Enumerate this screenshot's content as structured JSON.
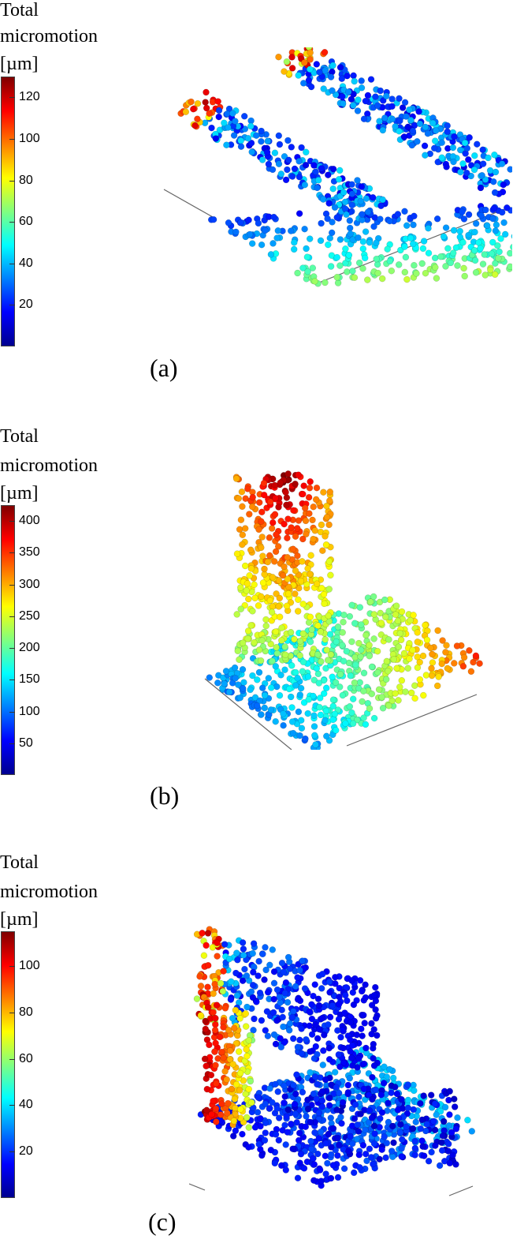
{
  "colormap": [
    "#00008f",
    "#0000ff",
    "#0080ff",
    "#00ffff",
    "#80ff80",
    "#ffff00",
    "#ff8000",
    "#ff0000",
    "#800000"
  ],
  "panels": [
    {
      "title_lines": [
        "Total",
        "micromotion",
        "[µm]"
      ],
      "colorbar_ticks": [
        "120",
        "100",
        "80",
        "60",
        "40",
        "20"
      ],
      "colorbar_range": [
        0,
        130
      ],
      "caption": "(a)"
    },
    {
      "title_lines": [
        "Total",
        "micromotion",
        "[µm]"
      ],
      "colorbar_ticks": [
        "400",
        "350",
        "300",
        "250",
        "200",
        "150",
        "100",
        "50"
      ],
      "colorbar_range": [
        0,
        425
      ],
      "caption": "(b)"
    },
    {
      "title_lines": [
        "Total",
        "micromotion",
        "[µm]"
      ],
      "colorbar_ticks": [
        "100",
        "80",
        "60",
        "40",
        "20"
      ],
      "colorbar_range": [
        0,
        115
      ],
      "caption": "(c)"
    }
  ]
}
